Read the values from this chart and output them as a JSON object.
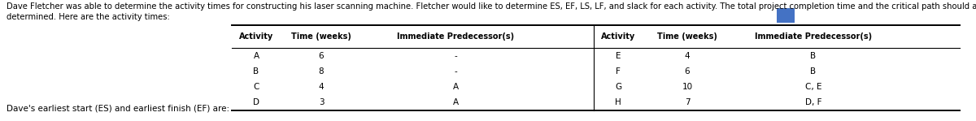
{
  "intro_text_line1": "Dave Fletcher was able to determine the activity times for constructing his laser scanning machine. Fletcher would like to determine ES, EF, LS, LF, and slack for each activity. The total project completion time and the critical path should also be",
  "intro_text_line2": "determined. Here are the activity times:",
  "footer_text": "Dave's earliest start (ES) and earliest finish (EF) are:",
  "table_header_left": [
    "Activity",
    "Time (weeks)",
    "Immediate Predecessor(s)"
  ],
  "table_header_right": [
    "Activity",
    "Time (weeks)",
    "Immediate Predecessor(s)"
  ],
  "left_rows": [
    [
      "A",
      "6",
      "-"
    ],
    [
      "B",
      "8",
      "-"
    ],
    [
      "C",
      "4",
      "A"
    ],
    [
      "D",
      "3",
      "A"
    ]
  ],
  "right_rows": [
    [
      "E",
      "4",
      "B"
    ],
    [
      "F",
      "6",
      "B"
    ],
    [
      "G",
      "10",
      "C, E"
    ],
    [
      "H",
      "7",
      "D, F"
    ]
  ],
  "background_color": "#ffffff",
  "text_color": "#000000",
  "table_header_fontsize": 7.0,
  "table_body_fontsize": 7.5,
  "intro_fontsize": 7.2,
  "footer_fontsize": 7.5,
  "small_blue_rect_color": "#4472C4"
}
